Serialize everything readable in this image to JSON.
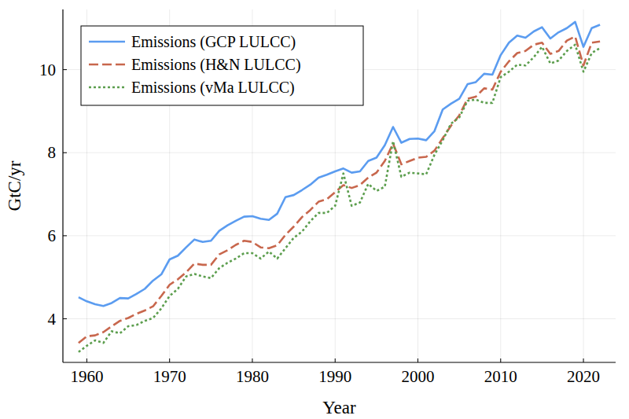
{
  "chart_data": {
    "type": "line",
    "x_label": "Year",
    "y_label": "GtC/yr",
    "x": [
      1959,
      1960,
      1961,
      1962,
      1963,
      1964,
      1965,
      1966,
      1967,
      1968,
      1969,
      1970,
      1971,
      1972,
      1973,
      1974,
      1975,
      1976,
      1977,
      1978,
      1979,
      1980,
      1981,
      1982,
      1983,
      1984,
      1985,
      1986,
      1987,
      1988,
      1989,
      1990,
      1991,
      1992,
      1993,
      1994,
      1995,
      1996,
      1997,
      1998,
      1999,
      2000,
      2001,
      2002,
      2003,
      2004,
      2005,
      2006,
      2007,
      2008,
      2009,
      2010,
      2011,
      2012,
      2013,
      2014,
      2015,
      2016,
      2017,
      2018,
      2019,
      2020,
      2021,
      2022
    ],
    "series": [
      {
        "name": "Emissions (GCP LULCC)",
        "color": "#5b9cf0",
        "line_style": "solid",
        "values": [
          4.52,
          4.42,
          4.35,
          4.31,
          4.38,
          4.5,
          4.49,
          4.6,
          4.72,
          4.92,
          5.07,
          5.43,
          5.52,
          5.72,
          5.91,
          5.85,
          5.88,
          6.12,
          6.25,
          6.36,
          6.46,
          6.47,
          6.41,
          6.38,
          6.53,
          6.93,
          6.98,
          7.1,
          7.23,
          7.4,
          7.47,
          7.55,
          7.62,
          7.52,
          7.55,
          7.8,
          7.88,
          8.18,
          8.62,
          8.24,
          8.33,
          8.34,
          8.3,
          8.52,
          9.04,
          9.18,
          9.3,
          9.65,
          9.7,
          9.9,
          9.88,
          10.35,
          10.65,
          10.82,
          10.77,
          10.92,
          11.02,
          10.75,
          10.9,
          11.0,
          11.15,
          10.55,
          11.0,
          11.08
        ]
      },
      {
        "name": "Emissions (H&N LULCC)",
        "color": "#c8674d",
        "line_style": "dash",
        "values": [
          3.42,
          3.58,
          3.6,
          3.68,
          3.82,
          3.95,
          4.02,
          4.12,
          4.2,
          4.3,
          4.55,
          4.82,
          4.95,
          5.12,
          5.33,
          5.3,
          5.3,
          5.55,
          5.65,
          5.78,
          5.88,
          5.85,
          5.72,
          5.7,
          5.77,
          6.02,
          6.22,
          6.45,
          6.62,
          6.82,
          6.88,
          7.05,
          7.22,
          7.15,
          7.22,
          7.4,
          7.52,
          7.8,
          8.22,
          7.72,
          7.8,
          7.88,
          7.9,
          8.05,
          8.35,
          8.65,
          8.9,
          9.3,
          9.35,
          9.55,
          9.52,
          9.95,
          10.2,
          10.4,
          10.45,
          10.6,
          10.65,
          10.38,
          10.45,
          10.7,
          10.8,
          10.1,
          10.65,
          10.68
        ]
      },
      {
        "name": "Emissions (vMa LULCC)",
        "color": "#5c9e4e",
        "line_style": "dot",
        "values": [
          3.2,
          3.35,
          3.48,
          3.42,
          3.7,
          3.65,
          3.82,
          3.85,
          3.95,
          4.02,
          4.25,
          4.55,
          4.72,
          5.02,
          5.08,
          5.02,
          4.98,
          5.22,
          5.35,
          5.45,
          5.58,
          5.58,
          5.45,
          5.62,
          5.45,
          5.7,
          5.95,
          6.1,
          6.35,
          6.55,
          6.55,
          6.72,
          7.5,
          6.72,
          6.8,
          7.25,
          7.08,
          7.18,
          8.28,
          7.42,
          7.52,
          7.5,
          7.48,
          7.95,
          8.3,
          8.7,
          8.85,
          9.25,
          9.28,
          9.2,
          9.2,
          9.82,
          9.95,
          10.12,
          10.1,
          10.3,
          10.55,
          10.15,
          10.22,
          10.45,
          10.6,
          9.95,
          10.4,
          10.52
        ]
      }
    ],
    "xlim": [
      1957.11,
      2023.89
    ],
    "ylim": [
      2.95,
      11.45
    ],
    "xticks": [
      1960,
      1970,
      1980,
      1990,
      2000,
      2010,
      2020
    ],
    "yticks": [
      4,
      6,
      8,
      10
    ],
    "grid": true,
    "legend": "topleft"
  }
}
